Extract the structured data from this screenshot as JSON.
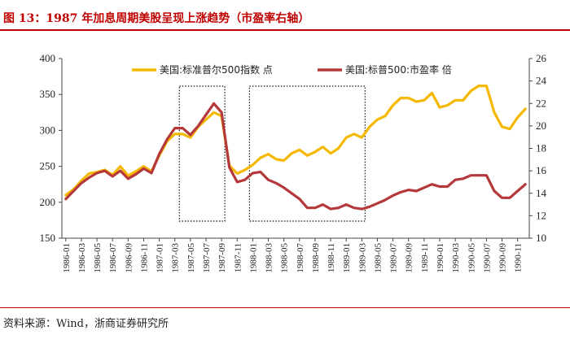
{
  "figure": {
    "title": "图 13：1987 年加息周期美股呈现上涨趋势（市盈率右轴）",
    "source": "资料来源：Wind，浙商证券研究所"
  },
  "colors": {
    "title": "#c00000",
    "sp500": "#f5b800",
    "pe": "#b5383a",
    "axis": "#444444"
  },
  "chart_data": {
    "type": "line",
    "title": "1987 年加息周期美股呈现上涨趋势（市盈率右轴）",
    "x_tick_labels": [
      "1986-01",
      "1986-03",
      "1986-05",
      "1986-07",
      "1986-09",
      "1986-11",
      "1987-01",
      "1987-03",
      "1987-05",
      "1987-07",
      "1987-09",
      "1987-11",
      "1988-01",
      "1988-03",
      "1988-05",
      "1988-07",
      "1988-09",
      "1988-11",
      "1989-01",
      "1989-03",
      "1989-05",
      "1989-07",
      "1989-09",
      "1989-11",
      "1990-01",
      "1990-03",
      "1990-05",
      "1990-07",
      "1990-09",
      "1990-11"
    ],
    "y_left": {
      "label": "美国:标准普尔500指数 点",
      "min": 150,
      "max": 400,
      "ticks": [
        150,
        200,
        250,
        300,
        350,
        400
      ]
    },
    "y_right": {
      "label": "美国:标普500:市盈率 倍",
      "min": 10,
      "max": 26,
      "ticks": [
        10,
        12,
        14,
        16,
        18,
        20,
        22,
        24,
        26
      ]
    },
    "x": [
      "1986-01",
      "1986-02",
      "1986-03",
      "1986-04",
      "1986-05",
      "1986-06",
      "1986-07",
      "1986-08",
      "1986-09",
      "1986-10",
      "1986-11",
      "1986-12",
      "1987-01",
      "1987-02",
      "1987-03",
      "1987-04",
      "1987-05",
      "1987-06",
      "1987-07",
      "1987-08",
      "1987-09",
      "1987-10",
      "1987-11",
      "1987-12",
      "1988-01",
      "1988-02",
      "1988-03",
      "1988-04",
      "1988-05",
      "1988-06",
      "1988-07",
      "1988-08",
      "1988-09",
      "1988-10",
      "1988-11",
      "1988-12",
      "1989-01",
      "1989-02",
      "1989-03",
      "1989-04",
      "1989-05",
      "1989-06",
      "1989-07",
      "1989-08",
      "1989-09",
      "1989-10",
      "1989-11",
      "1989-12",
      "1990-01",
      "1990-02",
      "1990-03",
      "1990-04",
      "1990-05",
      "1990-06",
      "1990-07",
      "1990-08",
      "1990-09",
      "1990-10",
      "1990-11",
      "1990-12"
    ],
    "series": [
      {
        "name": "美国:标准普尔500指数 点",
        "axis": "left",
        "values": [
          210,
          218,
          230,
          240,
          242,
          245,
          238,
          250,
          237,
          243,
          250,
          243,
          265,
          285,
          295,
          295,
          290,
          305,
          315,
          325,
          320,
          251,
          240,
          245,
          252,
          262,
          267,
          260,
          258,
          268,
          273,
          265,
          270,
          277,
          268,
          275,
          290,
          295,
          290,
          305,
          315,
          320,
          335,
          345,
          345,
          340,
          342,
          352,
          332,
          335,
          342,
          342,
          355,
          362,
          362,
          325,
          305,
          302,
          318,
          330
        ]
      },
      {
        "name": "美国:标普500:市盈率 倍",
        "axis": "right",
        "values": [
          13.5,
          14.2,
          14.9,
          15.4,
          15.8,
          16.0,
          15.5,
          16.0,
          15.3,
          15.7,
          16.2,
          15.8,
          17.5,
          18.8,
          19.8,
          19.8,
          19.2,
          20.0,
          21.0,
          22.0,
          21.2,
          16.3,
          15.0,
          15.2,
          15.8,
          15.9,
          15.2,
          14.9,
          14.5,
          14.0,
          13.5,
          12.7,
          12.7,
          13.0,
          12.6,
          12.7,
          13.0,
          12.7,
          12.6,
          12.8,
          13.1,
          13.4,
          13.8,
          14.1,
          14.3,
          14.2,
          14.5,
          14.8,
          14.6,
          14.6,
          15.2,
          15.3,
          15.6,
          15.6,
          15.6,
          14.2,
          13.6,
          13.6,
          14.2,
          14.8
        ]
      }
    ],
    "annotations": [
      {
        "type": "dotted-box",
        "from": "1987-04",
        "to": "1987-09"
      },
      {
        "type": "dotted-box",
        "from": "1988-01",
        "to": "1989-03"
      }
    ]
  }
}
